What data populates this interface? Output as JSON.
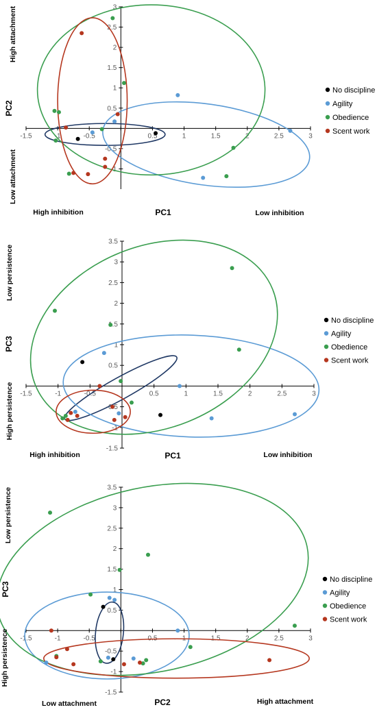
{
  "chart_data": [
    {
      "type": "scatter",
      "title": "",
      "xlabel": "PC1",
      "ylabel": "PC2",
      "xlim": [
        -1.5,
        3
      ],
      "ylim": [
        -1.5,
        3
      ],
      "xticks": [
        -1.5,
        -1,
        -0.5,
        0,
        0.5,
        1,
        1.5,
        2,
        2.5,
        3
      ],
      "xtick_labels": [
        "-1.5",
        "-1",
        "-0.5",
        "",
        "0.5",
        "1",
        "1.5",
        "2",
        "2.5",
        "3"
      ],
      "yticks": [
        -1,
        -0.5,
        0.5,
        1,
        1.5,
        2,
        2.5,
        3
      ],
      "ytick_labels": [
        "-1",
        "-0.5",
        "0.5",
        "1",
        "1.5",
        "2",
        "2.5",
        "3"
      ],
      "annotations": {
        "y_high": "High attachment",
        "y_low": "Low attachment",
        "x_low": "High inhibition",
        "x_high": "Low inhibition"
      },
      "legend_position": "right",
      "series": [
        {
          "name": "No discipline",
          "color": "#000000",
          "points": [
            [
              -0.68,
              -0.26
            ],
            [
              0.55,
              -0.12
            ]
          ]
        },
        {
          "name": "Agility",
          "color": "#5b9bd5",
          "points": [
            [
              0.9,
              0.82
            ],
            [
              2.68,
              -0.06
            ],
            [
              1.3,
              -1.22
            ],
            [
              -0.45,
              -0.1
            ],
            [
              -0.1,
              0.17
            ]
          ]
        },
        {
          "name": "Obedience",
          "color": "#3a9e4f",
          "points": [
            [
              -0.13,
              2.72
            ],
            [
              0.05,
              1.12
            ],
            [
              -1.05,
              0.43
            ],
            [
              -0.98,
              0.4
            ],
            [
              -1.03,
              -0.3
            ],
            [
              -0.3,
              -0.02
            ],
            [
              -0.82,
              -1.12
            ],
            [
              1.78,
              -0.48
            ],
            [
              1.67,
              -1.18
            ]
          ]
        },
        {
          "name": "Scent work",
          "color": "#b5371f",
          "points": [
            [
              -0.62,
              2.35
            ],
            [
              -0.05,
              0.35
            ],
            [
              -0.87,
              0.02
            ],
            [
              -0.75,
              -1.1
            ],
            [
              -0.52,
              -1.13
            ],
            [
              -0.25,
              -0.75
            ],
            [
              -0.25,
              -0.95
            ]
          ]
        }
      ],
      "ellipses": [
        {
          "series": "No discipline",
          "cx": -0.25,
          "cy": -0.15,
          "rx": 0.95,
          "ry": 0.27,
          "angle": 0
        },
        {
          "series": "Agility",
          "cx": 1.35,
          "cy": -0.4,
          "rx": 1.65,
          "ry": 1.0,
          "angle": -8
        },
        {
          "series": "Obedience",
          "cx": 0.48,
          "cy": 0.95,
          "rx": 1.8,
          "ry": 2.1,
          "angle": 0
        },
        {
          "series": "Scent work",
          "cx": -0.45,
          "cy": 0.68,
          "rx": 0.55,
          "ry": 2.05,
          "angle": 0
        }
      ]
    },
    {
      "type": "scatter",
      "title": "",
      "xlabel": "PC1",
      "ylabel": "PC3",
      "xlim": [
        -1.5,
        3
      ],
      "ylim": [
        -1.5,
        3.5
      ],
      "xticks": [
        -1.5,
        -1,
        -0.5,
        0,
        0.5,
        1,
        1.5,
        2,
        2.5,
        3
      ],
      "xtick_labels": [
        "-1.5",
        "-1",
        "-0.5",
        "",
        "0.5",
        "1",
        "1.5",
        "2",
        "2.5",
        "3"
      ],
      "yticks": [
        -1.5,
        -1,
        -0.5,
        0.5,
        1,
        1.5,
        2,
        2.5,
        3,
        3.5
      ],
      "ytick_labels": [
        "-1.5",
        "-1",
        "-0.5",
        "0.5",
        "1",
        "1.5",
        "2",
        "2.5",
        "3",
        "3.5"
      ],
      "annotations": {
        "y_high": "Low persistence",
        "y_low": "High persistence",
        "x_low": "High inhibition",
        "x_high": "Low inhibition"
      },
      "legend_position": "right",
      "series": [
        {
          "name": "No discipline",
          "color": "#000000",
          "points": [
            [
              -0.62,
              0.58
            ],
            [
              0.6,
              -0.7
            ]
          ]
        },
        {
          "name": "Agility",
          "color": "#5b9bd5",
          "points": [
            [
              -0.28,
              0.8
            ],
            [
              0.9,
              0.0
            ],
            [
              1.4,
              -0.78
            ],
            [
              2.7,
              -0.68
            ],
            [
              -0.73,
              -0.62
            ],
            [
              -0.05,
              -0.66
            ]
          ]
        },
        {
          "name": "Obedience",
          "color": "#3a9e4f",
          "points": [
            [
              -1.05,
              1.82
            ],
            [
              -0.18,
              1.48
            ],
            [
              1.72,
              2.85
            ],
            [
              1.83,
              0.88
            ],
            [
              -0.02,
              0.12
            ],
            [
              -0.88,
              -0.72
            ],
            [
              -0.93,
              -0.78
            ],
            [
              0.15,
              -0.4
            ]
          ]
        },
        {
          "name": "Scent work",
          "color": "#b5371f",
          "points": [
            [
              -0.35,
              0.0
            ],
            [
              -0.8,
              -0.65
            ],
            [
              -0.7,
              -0.72
            ],
            [
              -0.85,
              -0.82
            ],
            [
              -0.15,
              -0.5
            ],
            [
              -0.12,
              -0.82
            ],
            [
              0.05,
              -0.75
            ]
          ]
        }
      ],
      "ellipses": [
        {
          "series": "No discipline",
          "cx": -0.02,
          "cy": -0.05,
          "rx": 1.0,
          "ry": 0.26,
          "angle": 29
        },
        {
          "series": "Agility",
          "cx": 1.08,
          "cy": 0.0,
          "rx": 2.0,
          "ry": 1.23,
          "angle": -2
        },
        {
          "series": "Obedience",
          "cx": 0.5,
          "cy": 1.18,
          "rx": 2.0,
          "ry": 2.2,
          "angle": 22
        },
        {
          "series": "Scent work",
          "cx": -0.45,
          "cy": -0.62,
          "rx": 0.58,
          "ry": 0.52,
          "angle": 0
        }
      ]
    },
    {
      "type": "scatter",
      "title": "",
      "xlabel": "PC2",
      "ylabel": "PC3",
      "xlim": [
        -1.5,
        3
      ],
      "ylim": [
        -1.5,
        3.5
      ],
      "xticks": [
        -1.5,
        -1,
        -0.5,
        0,
        0.5,
        1,
        1.5,
        2,
        2.5,
        3
      ],
      "xtick_labels": [
        "-1.5",
        "-1",
        "-0.5",
        "",
        "0.5",
        "1",
        "1.5",
        "2",
        "2.5",
        "3"
      ],
      "yticks": [
        -1.5,
        -1,
        -0.5,
        0.5,
        1,
        1.5,
        2,
        2.5,
        3,
        3.5
      ],
      "ytick_labels": [
        "-1.5",
        "-1",
        "-0.5",
        "0.5",
        "1",
        "1.5",
        "2",
        "2.5",
        "3",
        "3.5"
      ],
      "annotations": {
        "y_high": "Low persistence",
        "y_low": "High persistence",
        "x_low": "Low attachment",
        "x_high": "High attachment"
      },
      "legend_position": "right",
      "series": [
        {
          "name": "No discipline",
          "color": "#000000",
          "points": [
            [
              -0.28,
              0.58
            ],
            [
              -0.12,
              -0.7
            ]
          ]
        },
        {
          "name": "Agility",
          "color": "#5b9bd5",
          "points": [
            [
              -0.18,
              0.8
            ],
            [
              -0.1,
              0.75
            ],
            [
              0.9,
              0.0
            ],
            [
              -1.18,
              -0.78
            ],
            [
              0.2,
              -0.68
            ],
            [
              -0.2,
              -0.66
            ]
          ]
        },
        {
          "name": "Obedience",
          "color": "#3a9e4f",
          "points": [
            [
              -1.12,
              2.88
            ],
            [
              0.43,
              1.85
            ],
            [
              -0.02,
              1.48
            ],
            [
              -0.48,
              0.88
            ],
            [
              2.75,
              0.12
            ],
            [
              1.1,
              -0.4
            ],
            [
              -1.02,
              -0.62
            ],
            [
              0.4,
              -0.72
            ],
            [
              0.35,
              -0.8
            ],
            [
              -0.32,
              -0.75
            ]
          ]
        },
        {
          "name": "Scent work",
          "color": "#b5371f",
          "points": [
            [
              -1.1,
              0.0
            ],
            [
              -0.85,
              -0.45
            ],
            [
              -1.02,
              -0.65
            ],
            [
              -0.75,
              -0.82
            ],
            [
              0.05,
              -0.82
            ],
            [
              0.3,
              -0.78
            ],
            [
              2.35,
              -0.72
            ]
          ]
        }
      ],
      "ellipses": [
        {
          "series": "No discipline",
          "cx": -0.18,
          "cy": -0.05,
          "rx": 0.22,
          "ry": 0.75,
          "angle": -6
        },
        {
          "series": "Agility",
          "cx": -0.22,
          "cy": -0.12,
          "rx": 1.3,
          "ry": 1.06,
          "angle": 0
        },
        {
          "series": "Obedience",
          "cx": 0.5,
          "cy": 1.25,
          "rx": 2.5,
          "ry": 2.25,
          "angle": 12
        },
        {
          "series": "Scent work",
          "cx": 0.88,
          "cy": -0.68,
          "rx": 2.1,
          "ry": 0.48,
          "angle": 0
        }
      ]
    }
  ]
}
